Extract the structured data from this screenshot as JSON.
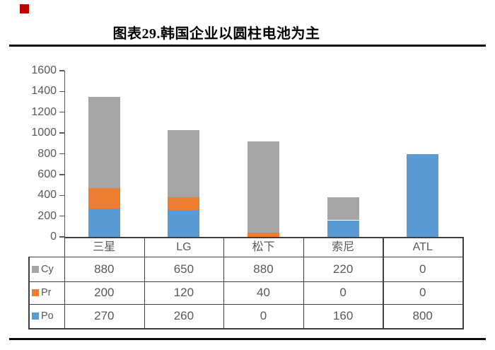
{
  "page": {
    "marker_color": "#C00000",
    "rule_color": "#0B0B0B",
    "text_color": "#595959",
    "border_color": "#3F3F3F",
    "axis_color": "#595959"
  },
  "header": {
    "title": "图表29.韩国企业以圆柱电池为主"
  },
  "chart_data": {
    "type": "bar",
    "stacked": true,
    "title": "图表29.韩国企业以圆柱电池为主",
    "categories": [
      "三星",
      "LG",
      "松下",
      "索尼",
      "ATL"
    ],
    "series": [
      {
        "name": "Cy",
        "color": "#A5A5A5",
        "values": [
          880,
          650,
          880,
          220,
          0
        ]
      },
      {
        "name": "Pr",
        "color": "#ED7D31",
        "values": [
          200,
          120,
          40,
          0,
          0
        ]
      },
      {
        "name": "Po",
        "color": "#5B9BD5",
        "values": [
          270,
          260,
          0,
          160,
          800
        ]
      }
    ],
    "stack_order_bottom_to_top": [
      "Po",
      "Pr",
      "Cy"
    ],
    "totals": [
      1350,
      1030,
      920,
      380,
      800
    ],
    "xlabel": "",
    "ylabel": "",
    "ylim": [
      0,
      1600
    ],
    "yticks": [
      0,
      200,
      400,
      600,
      800,
      1000,
      1200,
      1400,
      1600
    ],
    "grid": false,
    "show_data_table": true,
    "legend_position": "data-table-left-keys"
  }
}
